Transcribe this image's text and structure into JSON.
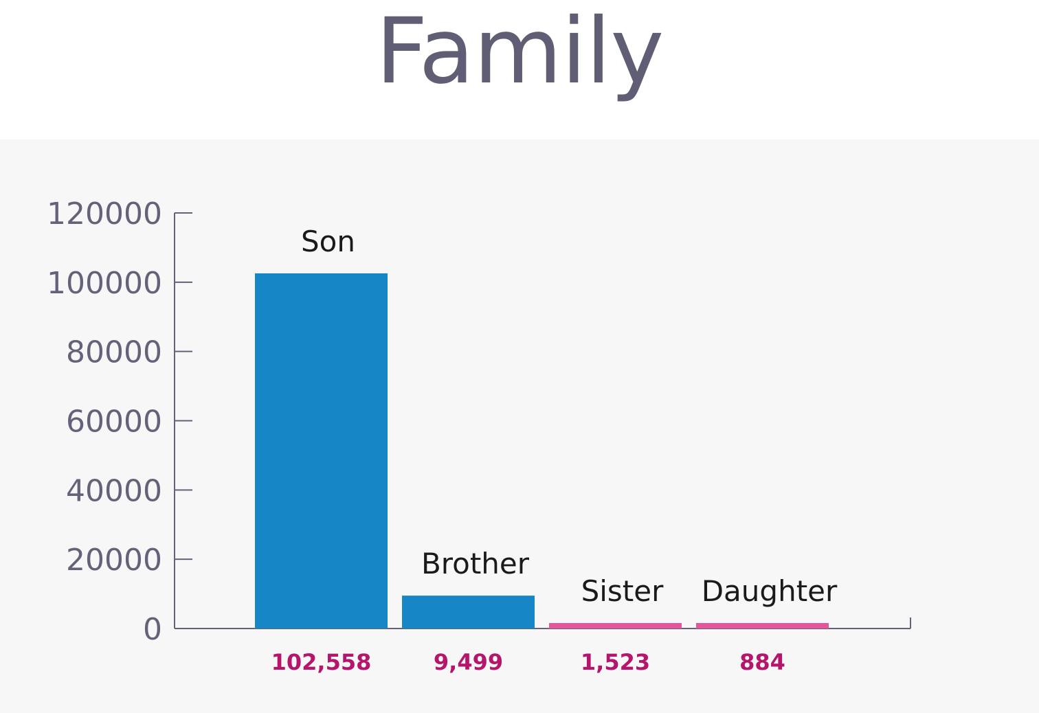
{
  "chart_data": {
    "type": "bar",
    "title": "Family",
    "categories": [
      "Son",
      "Brother",
      "Sister",
      "Daughter"
    ],
    "values": [
      102558,
      9499,
      1523,
      884
    ],
    "value_labels": [
      "102,558",
      "9,499",
      "1,523",
      "884"
    ],
    "bar_colors": [
      "#1786c7",
      "#1786c7",
      "#e5559a",
      "#e5559a"
    ],
    "ylim": [
      0,
      120000
    ],
    "yticks": [
      0,
      20000,
      40000,
      60000,
      80000,
      100000,
      120000
    ],
    "ytick_labels": [
      "0",
      "20000",
      "40000",
      "60000",
      "80000",
      "100000",
      "120000"
    ],
    "xlabel": "",
    "ylabel": "",
    "grid": false,
    "legend": "none"
  }
}
